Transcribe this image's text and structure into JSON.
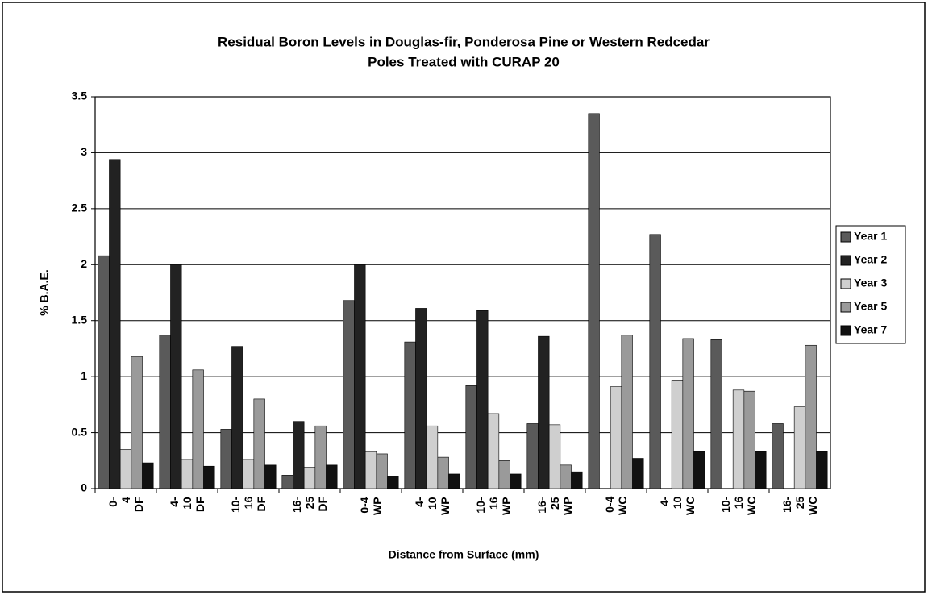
{
  "chart_data": {
    "type": "bar",
    "title": [
      "Residual Boron Levels in Douglas-fir, Ponderosa Pine or Western Redcedar",
      "Poles Treated with CURAP 20"
    ],
    "x_label": "Distance from Surface (mm)",
    "y_label": "% B.A.E.",
    "categories": [
      "0-4 DF",
      "4-10 DF",
      "10-16 DF",
      "16-25 DF",
      "0-4 WP",
      "4-10 WP",
      "10-16 WP",
      "16-25 WP",
      "0-4 WC",
      "4-10 WC",
      "10-16 WC",
      "16-25 WC"
    ],
    "series": [
      {
        "name": "Year 1",
        "color": "#5a5a5a",
        "values": [
          2.08,
          1.37,
          0.53,
          0.12,
          1.68,
          1.31,
          0.92,
          0.58,
          3.35,
          2.27,
          1.33,
          0.58
        ]
      },
      {
        "name": "Year 2",
        "color": "#222222",
        "values": [
          2.94,
          2.0,
          1.27,
          0.6,
          2.0,
          1.61,
          1.59,
          1.36,
          null,
          null,
          null,
          null
        ]
      },
      {
        "name": "Year 3",
        "color": "#cfcfcf",
        "values": [
          0.35,
          0.26,
          0.26,
          0.19,
          0.33,
          0.56,
          0.67,
          0.57,
          0.91,
          0.97,
          0.88,
          0.73
        ]
      },
      {
        "name": "Year 5",
        "color": "#9a9a9a",
        "values": [
          1.18,
          1.06,
          0.8,
          0.56,
          0.31,
          0.28,
          0.25,
          0.21,
          1.37,
          1.34,
          0.87,
          1.28
        ]
      },
      {
        "name": "Year 7",
        "color": "#111111",
        "values": [
          0.23,
          0.2,
          0.21,
          0.21,
          0.11,
          0.13,
          0.13,
          0.15,
          0.27,
          0.33,
          0.33,
          0.33
        ]
      }
    ],
    "ylim": [
      0,
      3.5
    ],
    "yticks": [
      0,
      0.5,
      1,
      1.5,
      2,
      2.5,
      3,
      3.5
    ],
    "grid": true,
    "legend": "right"
  }
}
